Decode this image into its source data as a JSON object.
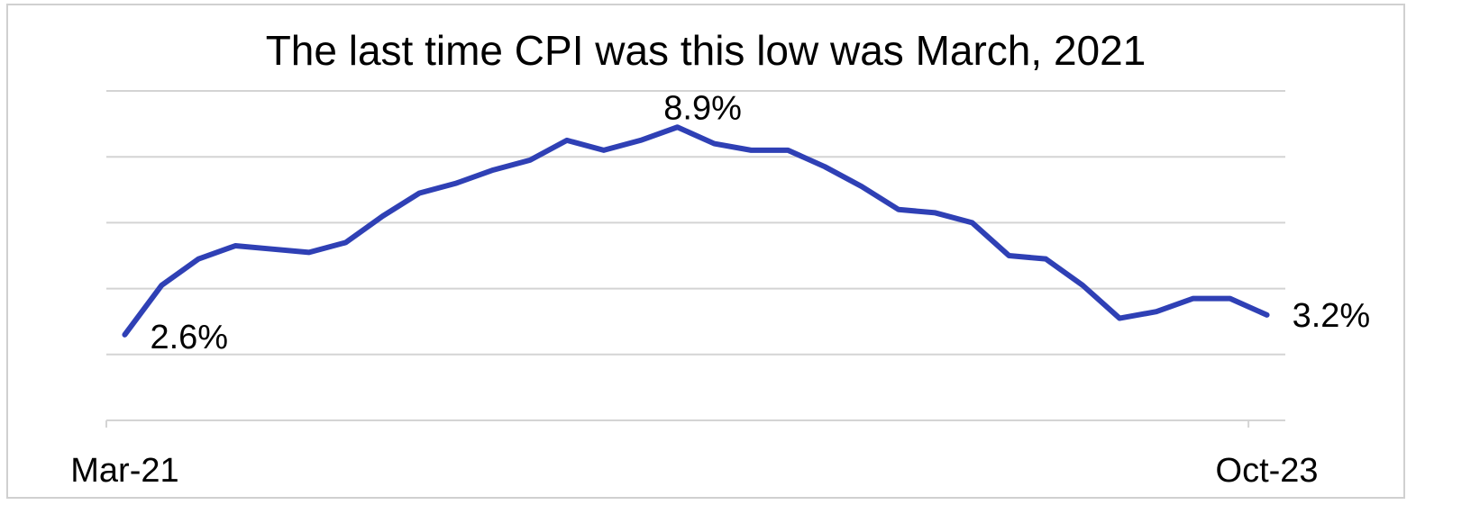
{
  "chart_data": {
    "type": "line",
    "title": "The last time CPI was this low was March, 2021",
    "categories": [
      "Mar-21",
      null,
      null,
      null,
      null,
      null,
      null,
      null,
      null,
      null,
      null,
      null,
      null,
      null,
      null,
      null,
      null,
      null,
      null,
      null,
      null,
      null,
      null,
      null,
      null,
      null,
      null,
      null,
      null,
      null,
      null,
      "Oct-23"
    ],
    "series": [
      {
        "name": "CPI",
        "color": "#2f40b5",
        "values": [
          2.6,
          4.1,
          4.9,
          5.3,
          5.2,
          5.1,
          5.4,
          6.2,
          6.9,
          7.2,
          7.6,
          7.9,
          8.5,
          8.2,
          8.5,
          8.9,
          8.4,
          8.2,
          8.2,
          7.7,
          7.1,
          6.4,
          6.3,
          6.0,
          5.0,
          4.9,
          4.1,
          3.1,
          3.3,
          3.7,
          3.7,
          3.2
        ],
        "value_labels": [
          "2.6%",
          null,
          null,
          null,
          null,
          null,
          null,
          null,
          null,
          null,
          null,
          null,
          null,
          null,
          null,
          "8.9%",
          null,
          null,
          null,
          null,
          null,
          null,
          null,
          null,
          null,
          null,
          null,
          null,
          null,
          null,
          null,
          "3.2%"
        ]
      }
    ],
    "ylim": [
      0,
      10
    ],
    "yticks": [
      0,
      2,
      4,
      6,
      8,
      10
    ],
    "grid": true
  }
}
